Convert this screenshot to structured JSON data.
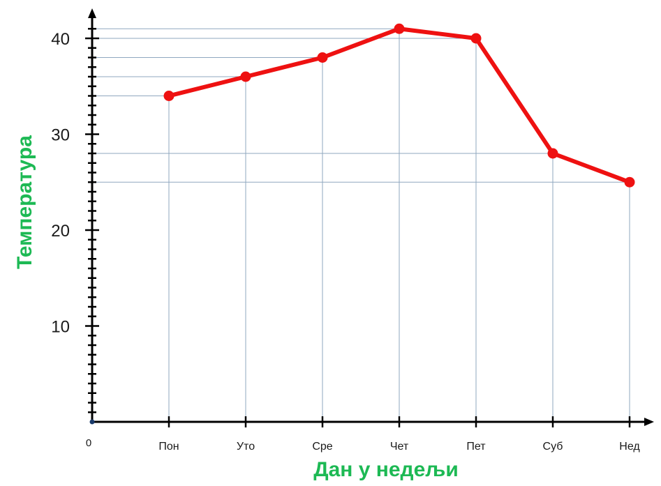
{
  "chart_data": {
    "type": "line",
    "categories": [
      "Пон",
      "Уто",
      "Сре",
      "Чет",
      "Пет",
      "Суб",
      "Нед"
    ],
    "values": [
      34,
      36,
      38,
      41,
      40,
      28,
      25
    ],
    "xlabel": "Дан у недељи",
    "ylabel": "Температура",
    "origin_label": "0",
    "y_ticks": [
      10,
      20,
      30,
      40
    ],
    "ylim": [
      0,
      42
    ],
    "grid": "guide lines from each point to both axes",
    "minor_tick_step": 1,
    "colors": {
      "line": "#ee1111",
      "axis_title": "#1db954",
      "grid": "#8fa7bf",
      "axis": "#000000"
    }
  }
}
